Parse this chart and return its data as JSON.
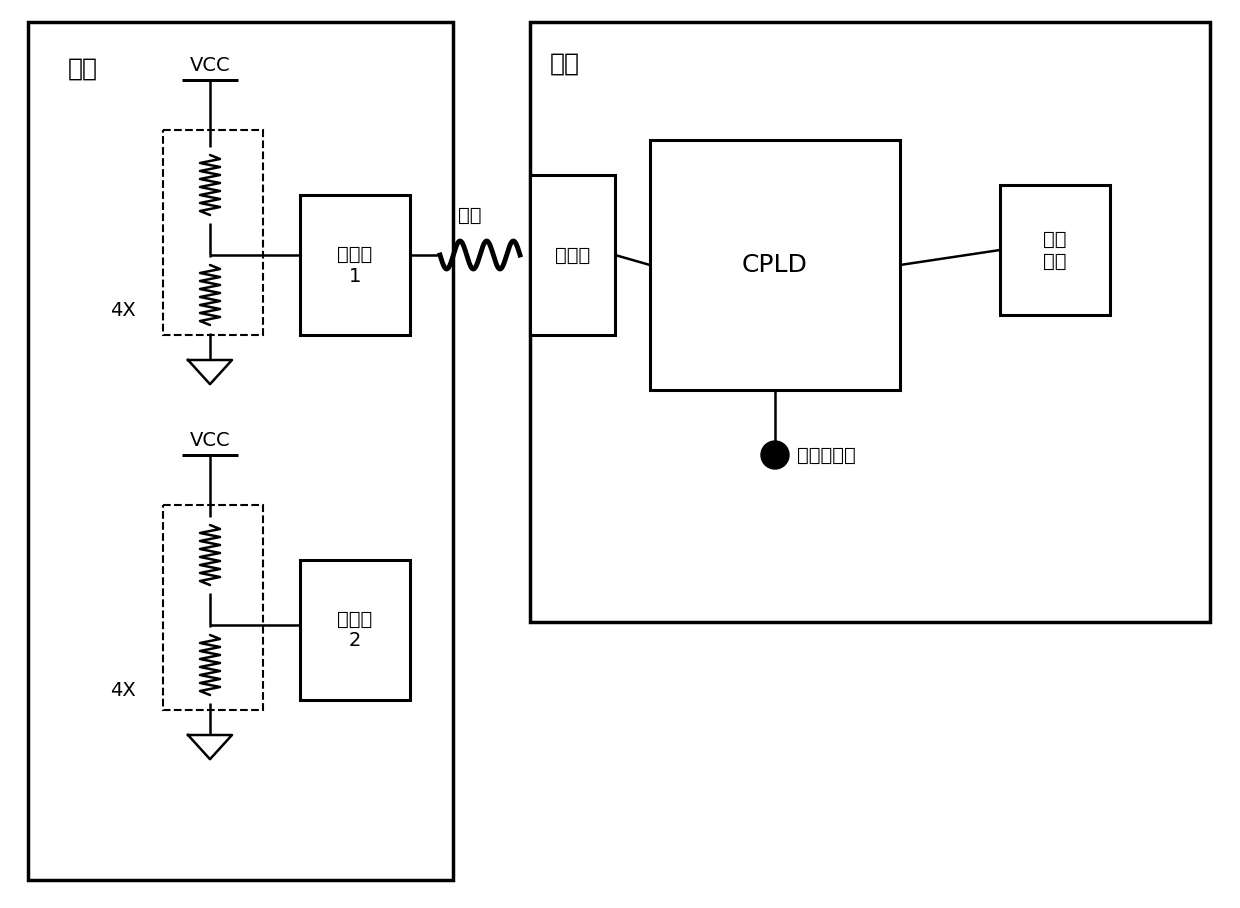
{
  "bg_color": "#ffffff",
  "line_color": "#000000",
  "main_board_label": "主板",
  "back_board_label": "背板",
  "vcc_label": "VCC",
  "connector1_label": "连接器\n1",
  "connector2_label": "连接器\n2",
  "connector3_label": "连接器",
  "cpld_label": "CPLD",
  "switch_label": "拨码\n开关",
  "cable_label": "线缆",
  "hdd_label": "硬盘状态灯",
  "4x_label": "4X",
  "figsize": [
    12.4,
    9.08
  ],
  "dpi": 100
}
